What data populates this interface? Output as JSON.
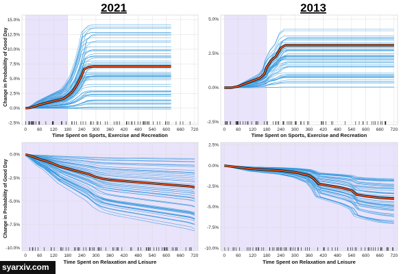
{
  "watermark": "syarxiv.com",
  "ylabel": "Change in Probability of Good Day",
  "colors": {
    "ice": "#3399dd",
    "pdp": "#ff5a1f",
    "pdp_outline": "#111111",
    "shade": "#e9e3fb",
    "grid": "#dddddd"
  },
  "chart_data": [
    {
      "type": "line",
      "title": "2021",
      "xlabel": "Time Spent on Sports, Exercise and Recreation",
      "x_ticks": [
        0,
        60,
        120,
        180,
        240,
        300,
        360,
        420,
        480,
        540,
        600,
        660,
        720
      ],
      "y_ticks": [
        "15.0%",
        "12.5%",
        "10.0%",
        "7.5%",
        "5.0%",
        "2.5%",
        "0.0%",
        "-2.5%"
      ],
      "y_tick_values": [
        0.15,
        0.125,
        0.1,
        0.075,
        0.05,
        0.025,
        0.0,
        -0.025
      ],
      "xlim": [
        -15,
        735
      ],
      "ylim": [
        -0.028,
        0.158
      ],
      "shaded_x": [
        0,
        180
      ],
      "curve_end_x": 620,
      "pdp": {
        "x": [
          0,
          20,
          40,
          60,
          80,
          100,
          120,
          140,
          160,
          180,
          200,
          220,
          240,
          250,
          270,
          290,
          320,
          360,
          420,
          500,
          620
        ],
        "y": [
          0.0,
          0.0005,
          0.003,
          0.006,
          0.008,
          0.01,
          0.012,
          0.014,
          0.016,
          0.021,
          0.028,
          0.04,
          0.056,
          0.066,
          0.07,
          0.071,
          0.071,
          0.071,
          0.071,
          0.071,
          0.071
        ]
      },
      "ice_scale_range": [
        -0.05,
        2.0
      ],
      "ice_count": 60
    },
    {
      "type": "line",
      "title": "2013",
      "xlabel": "Time Spent on Sports, Exercise and Recreation",
      "x_ticks": [
        0,
        60,
        120,
        180,
        240,
        300,
        360,
        420,
        480,
        540,
        600,
        660,
        720
      ],
      "y_ticks": [
        "5.0%",
        "2.5%",
        "0.0%",
        "-2.5%"
      ],
      "y_tick_values": [
        0.05,
        0.025,
        0.0,
        -0.025
      ],
      "xlim": [
        -15,
        735
      ],
      "ylim": [
        -0.027,
        0.053
      ],
      "shaded_x": [
        0,
        180
      ],
      "curve_end_x": 720,
      "pdp": {
        "x": [
          0,
          30,
          60,
          90,
          120,
          150,
          170,
          180,
          200,
          220,
          240,
          260,
          280,
          320,
          400,
          500,
          600,
          720
        ],
        "y": [
          0.0,
          0.0,
          0.001,
          0.003,
          0.005,
          0.007,
          0.01,
          0.015,
          0.02,
          0.023,
          0.029,
          0.031,
          0.031,
          0.031,
          0.031,
          0.031,
          0.031,
          0.031
        ]
      },
      "ice_scale_range": [
        0.0,
        1.45
      ],
      "ice_count": 50
    },
    {
      "type": "line",
      "title": "",
      "xlabel": "Time Spent on Relaxation and Leisure",
      "x_ticks": [
        0,
        60,
        120,
        180,
        240,
        300,
        360,
        420,
        480,
        540,
        600,
        660,
        720
      ],
      "y_ticks": [
        "0.0%",
        "-2.5%",
        "-5.0%",
        "-7.5%",
        "-10.0%"
      ],
      "y_tick_values": [
        0.0,
        -0.025,
        -0.05,
        -0.075,
        -0.1
      ],
      "xlim": [
        -15,
        735
      ],
      "ylim": [
        -0.103,
        0.013
      ],
      "shaded_x": [
        -15,
        735
      ],
      "curve_end_x": 720,
      "pdp": {
        "x": [
          0,
          20,
          40,
          60,
          90,
          120,
          150,
          180,
          210,
          240,
          270,
          300,
          330,
          360,
          400,
          450,
          500,
          550,
          600,
          650,
          700,
          720
        ],
        "y": [
          0.0,
          -0.001,
          -0.003,
          -0.005,
          -0.007,
          -0.01,
          -0.013,
          -0.015,
          -0.017,
          -0.019,
          -0.021,
          -0.024,
          -0.026,
          -0.027,
          -0.028,
          -0.029,
          -0.03,
          -0.031,
          -0.032,
          -0.033,
          -0.034,
          -0.035
        ]
      },
      "ice_scale_range": [
        0.1,
        2.4
      ],
      "ice_count": 55
    },
    {
      "type": "line",
      "title": "",
      "xlabel": "Time Spent on Relaxation and Leisure",
      "x_ticks": [
        0,
        60,
        120,
        180,
        240,
        300,
        360,
        420,
        480,
        540,
        600,
        660,
        720
      ],
      "y_ticks": [
        "2.5%",
        "0.0%",
        "-2.5%",
        "-5.0%",
        "-7.5%",
        "-10.0%"
      ],
      "y_tick_values": [
        0.025,
        0.0,
        -0.025,
        -0.05,
        -0.075,
        -0.1
      ],
      "xlim": [
        -15,
        735
      ],
      "ylim": [
        -0.103,
        0.028
      ],
      "shaded_x": [
        -15,
        735
      ],
      "curve_end_x": 720,
      "pdp": {
        "x": [
          0,
          60,
          120,
          180,
          240,
          300,
          330,
          360,
          380,
          400,
          420,
          460,
          500,
          540,
          560,
          600,
          660,
          720
        ],
        "y": [
          0.0,
          -0.002,
          -0.004,
          -0.005,
          -0.006,
          -0.008,
          -0.01,
          -0.012,
          -0.016,
          -0.022,
          -0.023,
          -0.025,
          -0.027,
          -0.03,
          -0.035,
          -0.037,
          -0.039,
          -0.04
        ]
      },
      "ice_scale_range": [
        0.4,
        1.8
      ],
      "ice_count": 50
    }
  ]
}
